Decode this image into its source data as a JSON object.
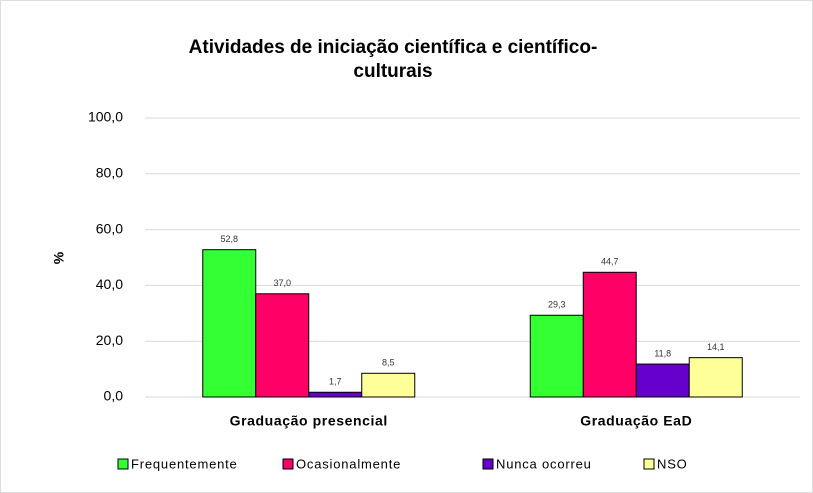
{
  "chart_data": {
    "type": "bar",
    "title": [
      "Atividades de iniciação científica e científico-",
      "culturais"
    ],
    "y_label": "%",
    "categories": [
      "Graduação presencial",
      "Graduação EaD"
    ],
    "series": [
      {
        "name": "Frequentemente",
        "color": "#33ff33",
        "values": [
          52.8,
          29.3
        ],
        "value_labels": [
          "52,8",
          "29,3"
        ]
      },
      {
        "name": "Ocasionalmente",
        "color": "#ff0066",
        "values": [
          37.0,
          44.7
        ],
        "value_labels": [
          "37,0",
          "44,7"
        ]
      },
      {
        "name": "Nunca ocorreu",
        "color": "#6600cc",
        "values": [
          1.7,
          11.8
        ],
        "value_labels": [
          "1,7",
          "11,8"
        ]
      },
      {
        "name": "NSO",
        "color": "#ffff99",
        "values": [
          8.5,
          14.1
        ],
        "value_labels": [
          "8,5",
          "14,1"
        ]
      }
    ],
    "ylim": [
      0,
      100
    ],
    "yticks": [
      {
        "value": 0,
        "label": "0,0"
      },
      {
        "value": 20,
        "label": "20,0"
      },
      {
        "value": 40,
        "label": "40,0"
      },
      {
        "value": 60,
        "label": "60,0"
      },
      {
        "value": 80,
        "label": "80,0"
      },
      {
        "value": 100,
        "label": "100,0"
      }
    ],
    "grid": true,
    "legend": "bottom"
  }
}
